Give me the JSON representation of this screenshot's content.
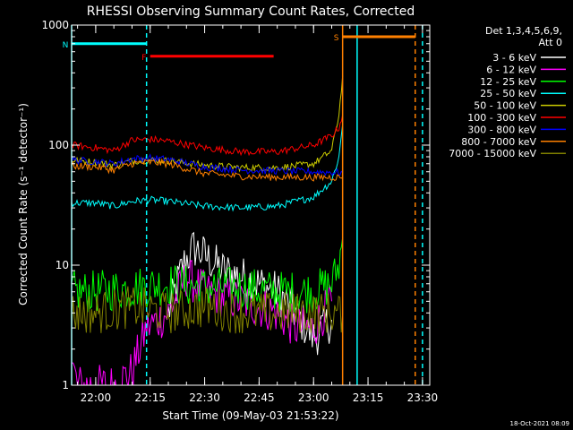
{
  "chart_data": {
    "type": "line",
    "title": "RHESSI Observing Summary Count Rates, Corrected",
    "xlabel": "Start Time (09-May-03 21:53:22)",
    "ylabel": "Corrected Count Rate (s⁻¹ detector⁻¹)",
    "footer": "18-Oct-2021 08:09",
    "y_scale": "log",
    "ylim": [
      1,
      1000
    ],
    "y_ticks": [
      1,
      10,
      100,
      1000
    ],
    "y_tick_labels": [
      "1",
      "10",
      "100",
      "1000"
    ],
    "xlim": [
      "21:53:22",
      "23:32:00"
    ],
    "x_ticks": [
      "22:00",
      "22:15",
      "22:30",
      "22:45",
      "23:00",
      "23:15",
      "23:30"
    ],
    "x_tick_labels": [
      "22:00",
      "22:15",
      "22:30",
      "22:45",
      "23:00",
      "23:15",
      "23:30"
    ],
    "legend": {
      "header": [
        "Det 1,3,4,5,6,9,",
        "Att 0"
      ],
      "placement": "right"
    },
    "annotations": [
      {
        "label": "N",
        "color": "#00ffff",
        "start": "21:53:22",
        "end": "22:14:00",
        "y": 700
      },
      {
        "label": "F",
        "color": "#ff0000",
        "start": "22:15:00",
        "end": "22:49:00",
        "y": 550
      },
      {
        "label": "S",
        "color": "#ff8000",
        "start": "23:08:00",
        "end": "23:28:00",
        "y": 800
      }
    ],
    "vertical_lines": [
      {
        "x": "21:53:22",
        "color": "#00ffff",
        "style": "solid"
      },
      {
        "x": "22:14:00",
        "color": "#00ffff",
        "style": "dashed"
      },
      {
        "x": "23:08:00",
        "color": "#ff8000",
        "style": "solid"
      },
      {
        "x": "23:12:00",
        "color": "#00ffff",
        "style": "solid"
      },
      {
        "x": "23:28:00",
        "color": "#ff8000",
        "style": "dashed"
      },
      {
        "x": "23:30:00",
        "color": "#00ffff",
        "style": "dashed"
      }
    ],
    "series": [
      {
        "name": "3 - 6 keV",
        "color": "#ffffff",
        "x": [
          "21:53:22",
          "22:05:00",
          "22:13:00",
          "22:20:00",
          "22:24:00",
          "22:27:00",
          "22:30:00",
          "22:35:00",
          "22:40:00",
          "22:45:00",
          "22:50:00",
          "22:55:00",
          "23:00:00",
          "23:05:00"
        ],
        "values": [
          null,
          null,
          null,
          4,
          10,
          14,
          12,
          9,
          8,
          7,
          6,
          4,
          2.5,
          3.5
        ]
      },
      {
        "name": "6 - 12 keV",
        "color": "#ff00ff",
        "x": [
          "21:53:22",
          "21:55:00",
          "22:00:00",
          "22:05:00",
          "22:10:00",
          "22:14:00",
          "22:20:00",
          "22:25:00",
          "22:30:00",
          "22:40:00",
          "22:50:00",
          "22:55:00",
          "23:00:00",
          "23:05:00"
        ],
        "values": [
          1.5,
          1,
          1,
          1,
          1.3,
          3,
          4,
          8,
          6,
          5,
          4,
          3,
          3,
          5
        ]
      },
      {
        "name": "12 - 25 keV",
        "color": "#00ff00",
        "x": [
          "21:53:22",
          "22:00:00",
          "22:10:00",
          "22:20:00",
          "22:30:00",
          "22:40:00",
          "22:50:00",
          "23:00:00",
          "23:05:00",
          "23:07:00",
          "23:08:00"
        ],
        "values": [
          6,
          6,
          6.5,
          7,
          6.5,
          6.5,
          6,
          6,
          7,
          10,
          17
        ]
      },
      {
        "name": "25 - 50 keV",
        "color": "#00ffff",
        "x": [
          "21:53:22",
          "22:00:00",
          "22:05:00",
          "22:10:00",
          "22:15:00",
          "22:20:00",
          "22:30:00",
          "22:40:00",
          "22:50:00",
          "23:00:00",
          "23:05:00",
          "23:07:00",
          "23:08:00"
        ],
        "values": [
          33,
          33,
          31,
          34,
          35,
          34,
          31,
          30,
          31,
          37,
          50,
          80,
          150
        ]
      },
      {
        "name": "50 - 100 keV",
        "color": "#cccc00",
        "x": [
          "21:53:22",
          "22:00:00",
          "22:05:00",
          "22:10:00",
          "22:15:00",
          "22:20:00",
          "22:30:00",
          "22:40:00",
          "22:50:00",
          "22:55:00",
          "23:00:00",
          "23:05:00",
          "23:07:00",
          "23:08:00"
        ],
        "values": [
          75,
          72,
          68,
          74,
          75,
          74,
          68,
          65,
          65,
          67,
          70,
          90,
          180,
          380
        ]
      },
      {
        "name": "100 - 300 keV",
        "color": "#ff0000",
        "x": [
          "21:53:22",
          "22:00:00",
          "22:05:00",
          "22:10:00",
          "22:15:00",
          "22:20:00",
          "22:30:00",
          "22:40:00",
          "22:50:00",
          "23:00:00",
          "23:05:00",
          "23:07:00",
          "23:08:00"
        ],
        "values": [
          100,
          95,
          90,
          110,
          112,
          108,
          95,
          88,
          88,
          100,
          120,
          140,
          180
        ]
      },
      {
        "name": "300 - 800 keV",
        "color": "#0000ff",
        "x": [
          "21:53:22",
          "22:00:00",
          "22:05:00",
          "22:10:00",
          "22:15:00",
          "22:20:00",
          "22:30:00",
          "22:40:00",
          "22:50:00",
          "23:00:00",
          "23:08:00"
        ],
        "values": [
          75,
          73,
          70,
          77,
          78,
          76,
          66,
          62,
          61,
          60,
          59
        ]
      },
      {
        "name": "800 - 7000 keV",
        "color": "#ff8000",
        "x": [
          "21:53:22",
          "22:00:00",
          "22:05:00",
          "22:10:00",
          "22:15:00",
          "22:20:00",
          "22:30:00",
          "22:40:00",
          "22:50:00",
          "23:00:00",
          "23:08:00"
        ],
        "values": [
          67,
          66,
          62,
          70,
          72,
          70,
          58,
          55,
          54,
          54,
          54
        ]
      },
      {
        "name": "7000 - 15000 keV",
        "color": "#808000",
        "x": [
          "21:53:22",
          "22:00:00",
          "22:10:00",
          "22:20:00",
          "22:30:00",
          "22:40:00",
          "22:50:00",
          "23:00:00",
          "23:08:00"
        ],
        "values": [
          4,
          4,
          4.5,
          4,
          4.5,
          4,
          4,
          4,
          4
        ]
      }
    ]
  }
}
